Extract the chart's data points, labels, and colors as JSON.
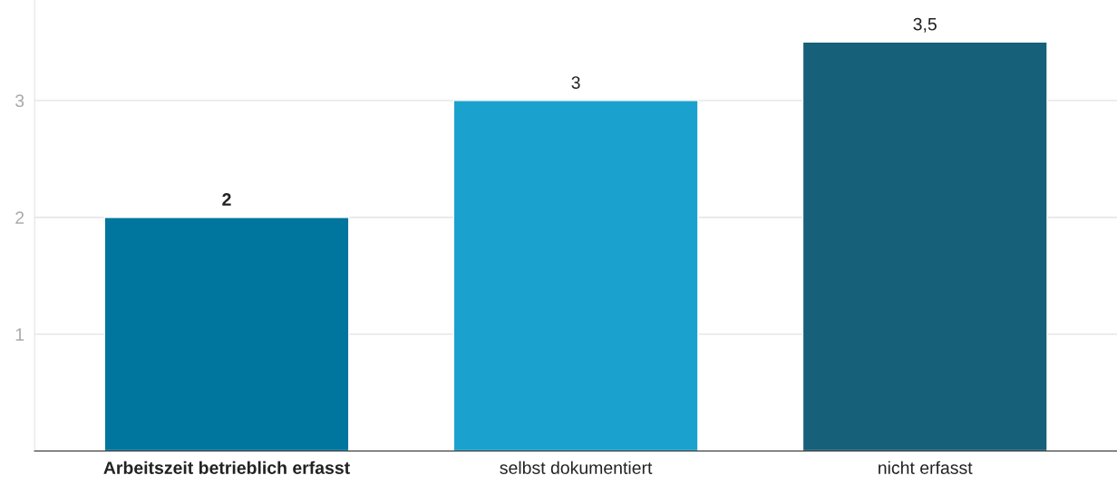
{
  "chart_data": {
    "type": "bar",
    "categories": [
      "Arbeitszeit betrieblich erfasst",
      "selbst dokumentiert",
      "nicht erfasst"
    ],
    "values": [
      2,
      3,
      3.5
    ],
    "colors": [
      "#00759e",
      "#1aa1cd",
      "#176079"
    ],
    "value_labels": [
      "2",
      "3",
      "3,5"
    ],
    "ylim": [
      0,
      3.86
    ],
    "yticks": [
      1,
      2,
      3
    ],
    "grid": "y"
  }
}
